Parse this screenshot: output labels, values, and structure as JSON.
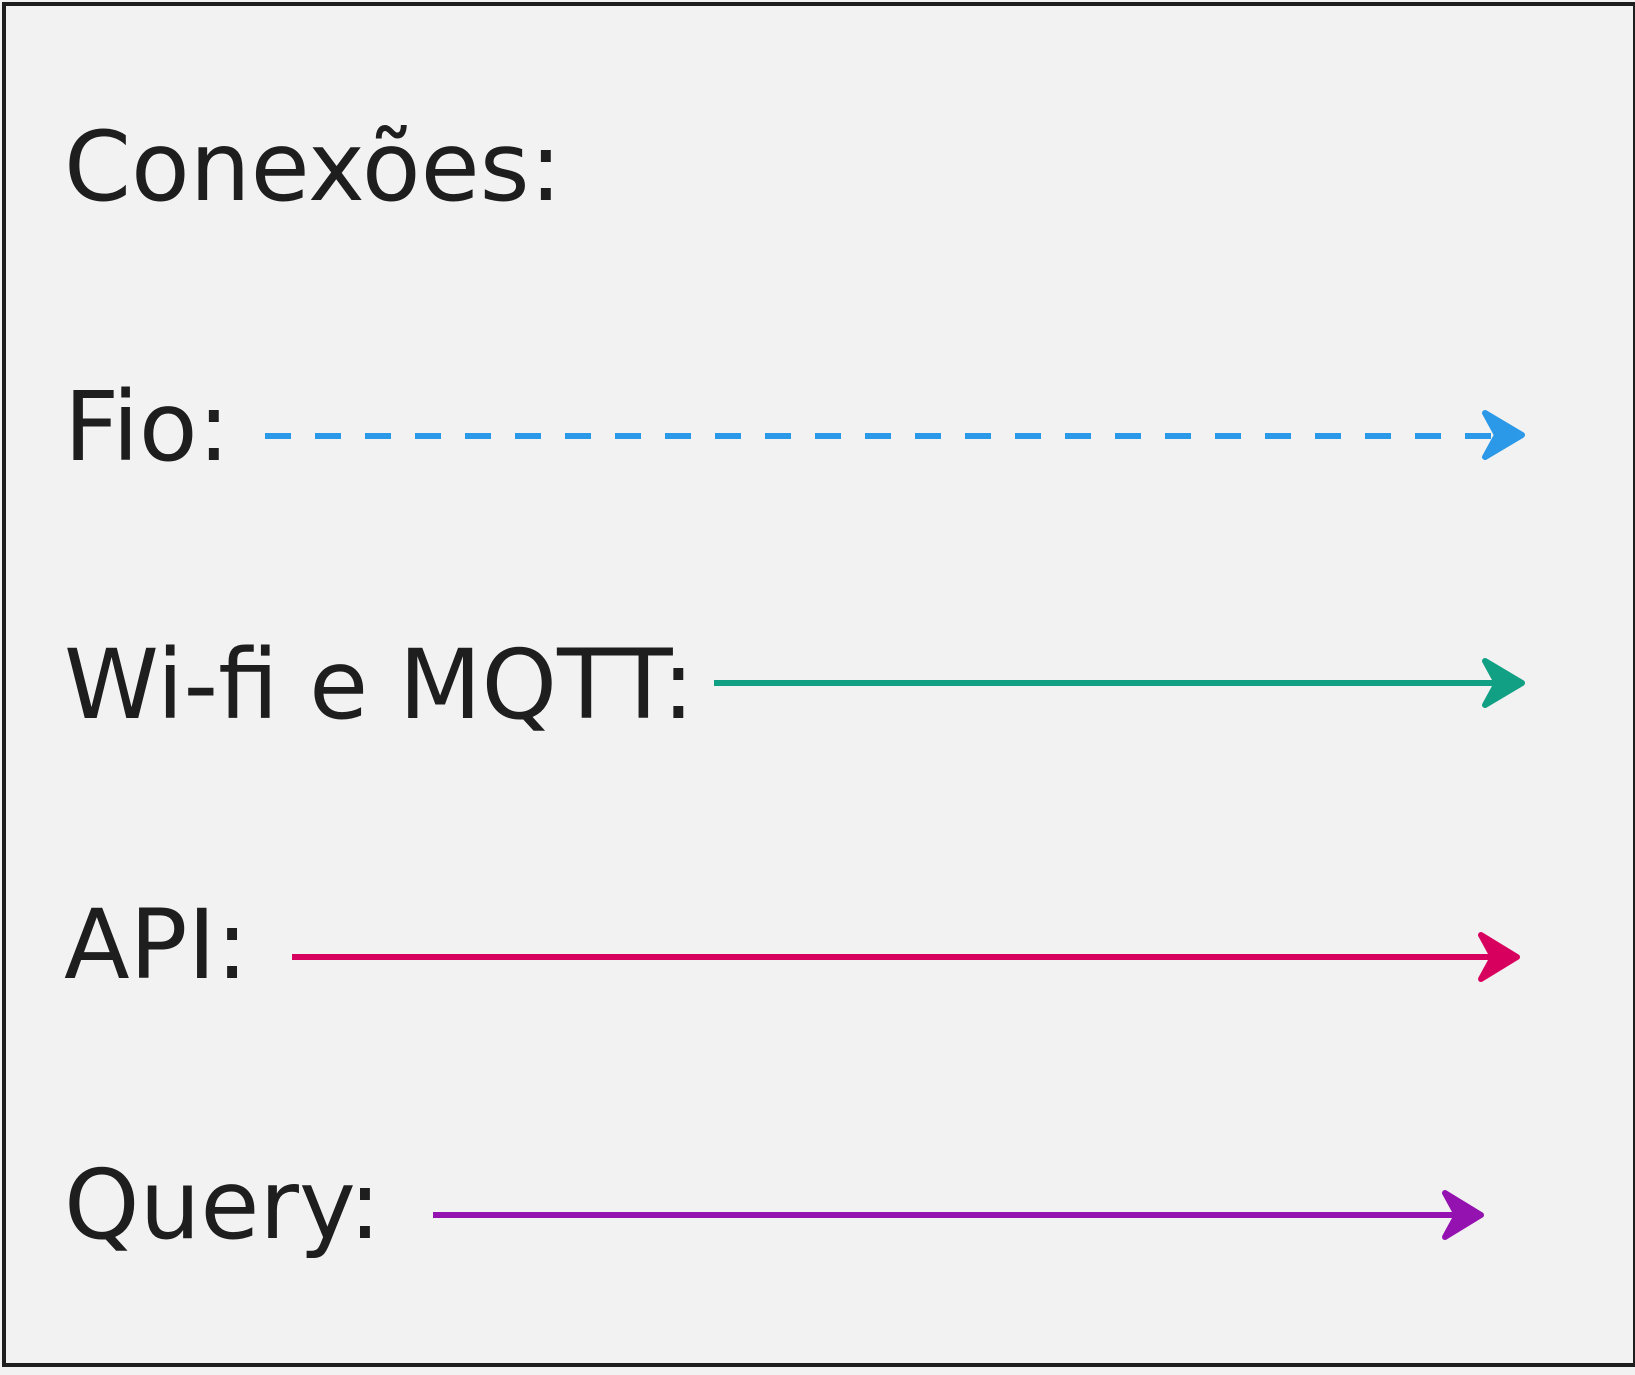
{
  "legend": {
    "title": "Conexões:",
    "items": [
      {
        "label": "Fio:",
        "line_style": "dashed",
        "color": "#2b98e8"
      },
      {
        "label": "Wi-fi e MQTT:",
        "line_style": "solid",
        "color": "#12a085"
      },
      {
        "label": "API:",
        "line_style": "solid",
        "color": "#d8005e"
      },
      {
        "label": "Query:",
        "line_style": "solid",
        "color": "#9312b0"
      }
    ]
  }
}
